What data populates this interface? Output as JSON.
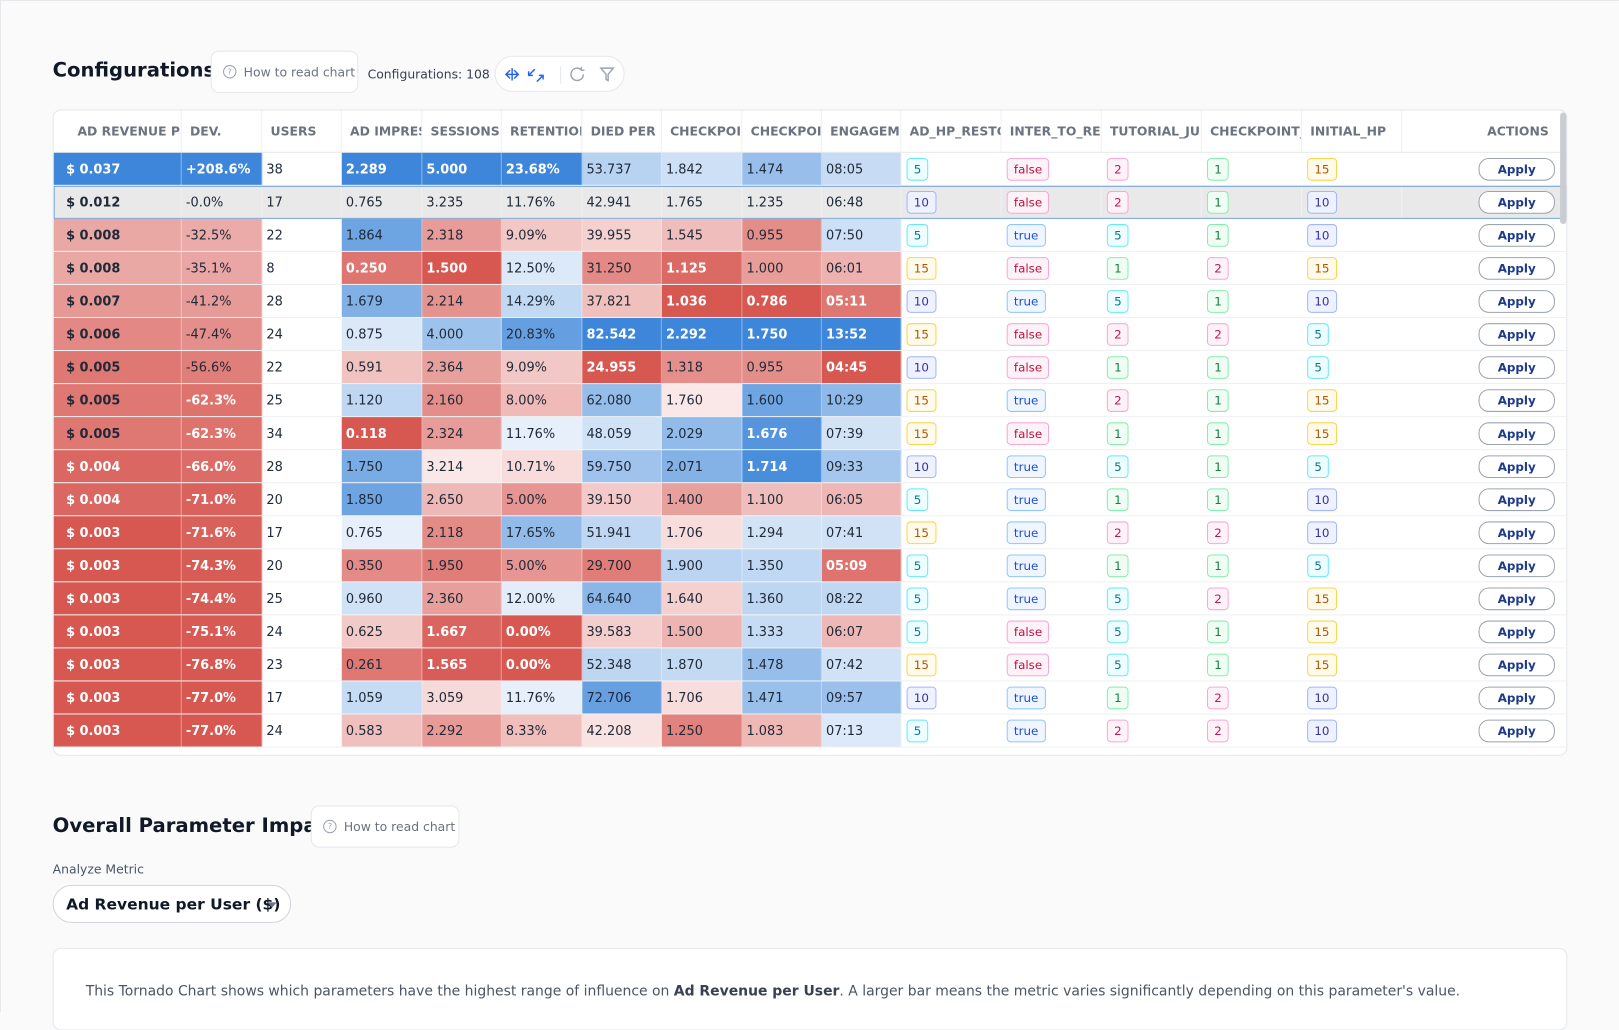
{
  "header": {
    "title": "Configurations",
    "help_button": "How to read chart",
    "count_label": "Configurations: 108"
  },
  "table": {
    "columns": [
      "AD REVENUE PE",
      "DEV.",
      "USERS",
      "AD IMPRES",
      "SESSIONS P",
      "RETENTION",
      "DIED PER U",
      "CHECKPOIN",
      "CHECKPOIN",
      "ENGAGEME",
      "AD_HP_RESTO",
      "INTER_TO_REV",
      "TUTORIAL_JU",
      "CHECKPOINT_",
      "INITIAL_HP",
      "ACTIONS"
    ],
    "action_label": "Apply",
    "rows": [
      [
        "$ 0.037",
        "+208.6%",
        "38",
        "2.289",
        "5.000",
        "23.68%",
        "53.737",
        "1.842",
        "1.474",
        "08:05",
        "5",
        "false",
        "2",
        "1",
        "15"
      ],
      [
        "$ 0.012",
        "-0.0%",
        "17",
        "0.765",
        "3.235",
        "11.76%",
        "42.941",
        "1.765",
        "1.235",
        "06:48",
        "10",
        "false",
        "2",
        "1",
        "10"
      ],
      [
        "$ 0.008",
        "-32.5%",
        "22",
        "1.864",
        "2.318",
        "9.09%",
        "39.955",
        "1.545",
        "0.955",
        "07:50",
        "5",
        "true",
        "5",
        "1",
        "10"
      ],
      [
        "$ 0.008",
        "-35.1%",
        "8",
        "0.250",
        "1.500",
        "12.50%",
        "31.250",
        "1.125",
        "1.000",
        "06:01",
        "15",
        "false",
        "1",
        "2",
        "15"
      ],
      [
        "$ 0.007",
        "-41.2%",
        "28",
        "1.679",
        "2.214",
        "14.29%",
        "37.821",
        "1.036",
        "0.786",
        "05:11",
        "10",
        "true",
        "5",
        "1",
        "10"
      ],
      [
        "$ 0.006",
        "-47.4%",
        "24",
        "0.875",
        "4.000",
        "20.83%",
        "82.542",
        "2.292",
        "1.750",
        "13:52",
        "15",
        "false",
        "2",
        "2",
        "5"
      ],
      [
        "$ 0.005",
        "-56.6%",
        "22",
        "0.591",
        "2.364",
        "9.09%",
        "24.955",
        "1.318",
        "0.955",
        "04:45",
        "10",
        "false",
        "1",
        "1",
        "5"
      ],
      [
        "$ 0.005",
        "-62.3%",
        "25",
        "1.120",
        "2.160",
        "8.00%",
        "62.080",
        "1.760",
        "1.600",
        "10:29",
        "15",
        "true",
        "2",
        "1",
        "15"
      ],
      [
        "$ 0.005",
        "-62.3%",
        "34",
        "0.118",
        "2.324",
        "11.76%",
        "48.059",
        "2.029",
        "1.676",
        "07:39",
        "15",
        "false",
        "1",
        "1",
        "15"
      ],
      [
        "$ 0.004",
        "-66.0%",
        "28",
        "1.750",
        "3.214",
        "10.71%",
        "59.750",
        "2.071",
        "1.714",
        "09:33",
        "10",
        "true",
        "5",
        "1",
        "5"
      ],
      [
        "$ 0.004",
        "-71.0%",
        "20",
        "1.850",
        "2.650",
        "5.00%",
        "39.150",
        "1.400",
        "1.100",
        "06:05",
        "5",
        "true",
        "1",
        "1",
        "10"
      ],
      [
        "$ 0.003",
        "-71.6%",
        "17",
        "0.765",
        "2.118",
        "17.65%",
        "51.941",
        "1.706",
        "1.294",
        "07:41",
        "15",
        "true",
        "2",
        "2",
        "10"
      ],
      [
        "$ 0.003",
        "-74.3%",
        "20",
        "0.350",
        "1.950",
        "5.00%",
        "29.700",
        "1.900",
        "1.350",
        "05:09",
        "5",
        "true",
        "1",
        "1",
        "5"
      ],
      [
        "$ 0.003",
        "-74.4%",
        "25",
        "0.960",
        "2.360",
        "12.00%",
        "64.640",
        "1.640",
        "1.360",
        "08:22",
        "5",
        "true",
        "5",
        "2",
        "15"
      ],
      [
        "$ 0.003",
        "-75.1%",
        "24",
        "0.625",
        "1.667",
        "0.00%",
        "39.583",
        "1.500",
        "1.333",
        "06:07",
        "5",
        "false",
        "5",
        "1",
        "15"
      ],
      [
        "$ 0.003",
        "-76.8%",
        "23",
        "0.261",
        "1.565",
        "0.00%",
        "52.348",
        "1.870",
        "1.478",
        "07:42",
        "15",
        "false",
        "5",
        "1",
        "15"
      ],
      [
        "$ 0.003",
        "-77.0%",
        "17",
        "1.059",
        "3.059",
        "11.76%",
        "72.706",
        "1.706",
        "1.471",
        "09:57",
        "10",
        "true",
        "1",
        "2",
        "10"
      ],
      [
        "$ 0.003",
        "-77.0%",
        "24",
        "0.583",
        "2.292",
        "8.33%",
        "42.208",
        "1.250",
        "1.083",
        "07:13",
        "5",
        "true",
        "2",
        "2",
        "10"
      ]
    ]
  },
  "impact": {
    "title": "Overall Parameter Impact",
    "help_button": "How to read chart",
    "metric_label": "Analyze Metric",
    "metric_value": "Ad Revenue per User ($)",
    "description": {
      "before": "This Tornado Chart shows which parameters have the highest range of influence on ",
      "metric": "Ad Revenue per User",
      "after": ". A larger bar means the metric varies significantly depending on this parameter's value."
    }
  }
}
